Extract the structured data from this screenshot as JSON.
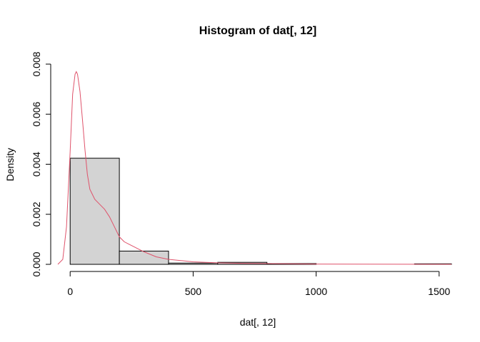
{
  "chart_data": {
    "type": "bar",
    "title": "Histogram of dat[, 12]",
    "xlabel": "dat[, 12]",
    "ylabel": "Density",
    "xlim": [
      -50,
      1550
    ],
    "ylim": [
      0,
      0.008
    ],
    "x_ticks": [
      0,
      500,
      1000,
      1500
    ],
    "x_tick_labels": [
      "0",
      "500",
      "1000",
      "1500"
    ],
    "y_ticks": [
      0,
      0.002,
      0.004,
      0.006,
      0.008
    ],
    "y_tick_labels": [
      "0.000",
      "0.002",
      "0.004",
      "0.006",
      "0.008"
    ],
    "bins": [
      {
        "start": 0,
        "end": 200,
        "density": 0.00424
      },
      {
        "start": 200,
        "end": 400,
        "density": 0.00053
      },
      {
        "start": 400,
        "end": 600,
        "density": 5e-05
      },
      {
        "start": 600,
        "end": 800,
        "density": 8e-05
      },
      {
        "start": 800,
        "end": 1000,
        "density": 3e-05
      },
      {
        "start": 1000,
        "end": 1200,
        "density": 0.0
      },
      {
        "start": 1200,
        "end": 1400,
        "density": 0.0
      },
      {
        "start": 1400,
        "end": 1600,
        "density": 2e-05
      }
    ],
    "density_curve": {
      "color": "#DF536B",
      "x": [
        -50,
        -30,
        -15,
        0,
        10,
        20,
        25,
        30,
        40,
        50,
        60,
        70,
        80,
        100,
        120,
        140,
        160,
        180,
        200,
        220,
        240,
        260,
        280,
        300,
        350,
        400,
        450,
        500,
        600,
        700,
        800,
        900,
        1000,
        1200,
        1400,
        1550
      ],
      "y": [
        0.0,
        0.0002,
        0.0015,
        0.0045,
        0.0068,
        0.0076,
        0.0077,
        0.0076,
        0.0069,
        0.0058,
        0.0046,
        0.0036,
        0.003,
        0.0026,
        0.0024,
        0.0022,
        0.0019,
        0.0015,
        0.0011,
        0.0009,
        0.0008,
        0.0007,
        0.0006,
        0.0005,
        0.0003,
        0.0002,
        0.00015,
        0.0001,
        6e-05,
        4e-05,
        3e-05,
        2e-05,
        1e-05,
        5e-06,
        3e-06,
        0.0
      ]
    },
    "colors": {
      "bar_fill": "#D3D3D3",
      "bar_stroke": "#000000",
      "density": "#DF536B"
    }
  }
}
